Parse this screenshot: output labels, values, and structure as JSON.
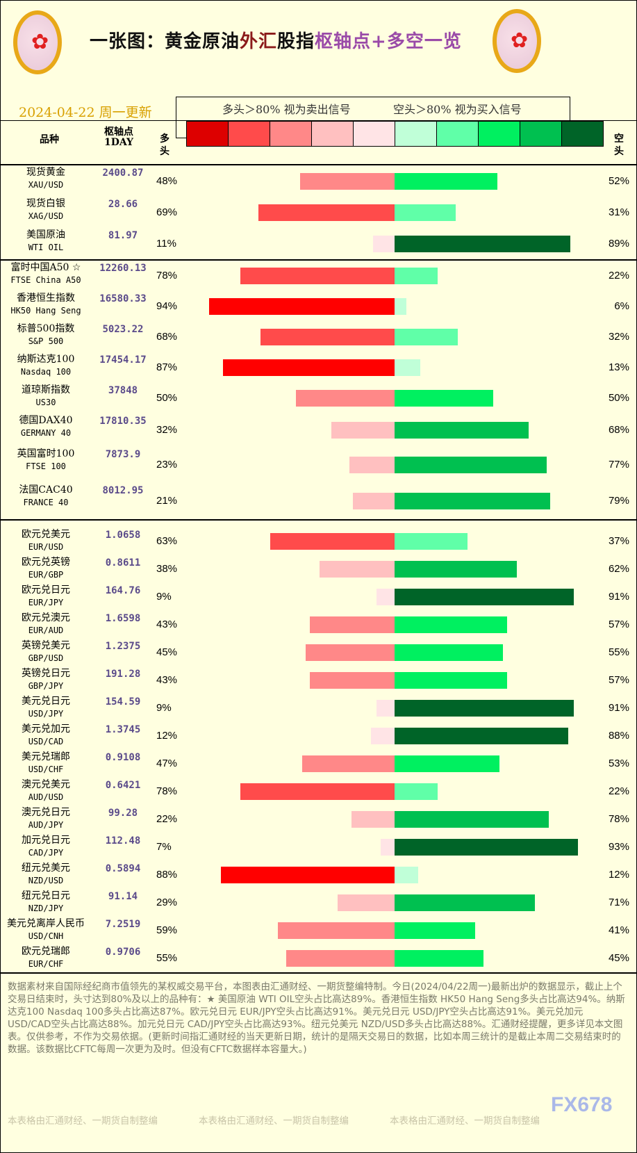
{
  "header": {
    "title_parts": [
      "一张图：黄金原油",
      "外汇",
      "股指",
      "枢轴点+多空一览"
    ],
    "date": "2024-04-22 周一更新"
  },
  "legend": {
    "long_label": "多头＞80% 视为卖出信号",
    "short_label": "空头＞80% 视为买入信号",
    "swatches": [
      "#dd0000",
      "#ff4b4b",
      "#ff8888",
      "#ffc0c0",
      "#ffe4e6",
      "#c0ffd8",
      "#60ffa8",
      "#00f060",
      "#00c050",
      "#006428"
    ]
  },
  "columns": {
    "name": "品种",
    "pivot": "枢轴点",
    "pivot_sub": "1DAY",
    "long": "多头",
    "short": "空头"
  },
  "sections": [
    [
      {
        "cn": "现货黄金",
        "en": "XAU/USD",
        "pivot": "2400.87",
        "long": 48,
        "short": 52
      },
      {
        "cn": "现货白银",
        "en": "XAG/USD",
        "pivot": "28.66",
        "long": 69,
        "short": 31
      },
      {
        "cn": "美国原油",
        "en": "WTI OIL",
        "pivot": "81.97",
        "long": 11,
        "short": 89
      }
    ],
    [
      {
        "cn": "富时中国A50 ☆",
        "en": "FTSE China A50",
        "pivot": "12260.13",
        "long": 78,
        "short": 22
      },
      {
        "cn": "香港恒生指数",
        "en": "HK50 Hang Seng",
        "pivot": "16580.33",
        "long": 94,
        "short": 6
      },
      {
        "cn": "标普500指数",
        "en": "S&P 500",
        "pivot": "5023.22",
        "long": 68,
        "short": 32
      },
      {
        "cn": "纳斯达克100",
        "en": "Nasdaq 100",
        "pivot": "17454.17",
        "long": 87,
        "short": 13
      },
      {
        "cn": "道琼斯指数",
        "en": "US30",
        "pivot": "37848",
        "long": 50,
        "short": 50
      },
      {
        "cn": "德国DAX40",
        "en": "GERMANY 40",
        "pivot": "17810.35",
        "long": 32,
        "short": 68
      },
      {
        "cn": "英国富时100",
        "en": "FTSE 100",
        "pivot": "7873.9",
        "long": 23,
        "short": 77
      },
      {
        "cn": "法国CAC40",
        "en": "FRANCE 40",
        "pivot": "8012.95",
        "long": 21,
        "short": 79
      }
    ],
    [
      {
        "cn": "欧元兑美元",
        "en": "EUR/USD",
        "pivot": "1.0658",
        "long": 63,
        "short": 37
      },
      {
        "cn": "欧元兑英镑",
        "en": "EUR/GBP",
        "pivot": "0.8611",
        "long": 38,
        "short": 62
      },
      {
        "cn": "欧元兑日元",
        "en": "EUR/JPY",
        "pivot": "164.76",
        "long": 9,
        "short": 91
      },
      {
        "cn": "欧元兑澳元",
        "en": "EUR/AUD",
        "pivot": "1.6598",
        "long": 43,
        "short": 57
      },
      {
        "cn": "英镑兑美元",
        "en": "GBP/USD",
        "pivot": "1.2375",
        "long": 45,
        "short": 55
      },
      {
        "cn": "英镑兑日元",
        "en": "GBP/JPY",
        "pivot": "191.28",
        "long": 43,
        "short": 57
      },
      {
        "cn": "美元兑日元",
        "en": "USD/JPY",
        "pivot": "154.59",
        "long": 9,
        "short": 91
      },
      {
        "cn": "美元兑加元",
        "en": "USD/CAD",
        "pivot": "1.3745",
        "long": 12,
        "short": 88
      },
      {
        "cn": "美元兑瑞郎",
        "en": "USD/CHF",
        "pivot": "0.9108",
        "long": 47,
        "short": 53
      },
      {
        "cn": "澳元兑美元",
        "en": "AUD/USD",
        "pivot": "0.6421",
        "long": 78,
        "short": 22
      },
      {
        "cn": "澳元兑日元",
        "en": "AUD/JPY",
        "pivot": "99.28",
        "long": 22,
        "short": 78
      },
      {
        "cn": "加元兑日元",
        "en": "CAD/JPY",
        "pivot": "112.48",
        "long": 7,
        "short": 93
      },
      {
        "cn": "纽元兑美元",
        "en": "NZD/USD",
        "pivot": "0.5894",
        "long": 88,
        "short": 12
      },
      {
        "cn": "纽元兑日元",
        "en": "NZD/JPY",
        "pivot": "91.14",
        "long": 29,
        "short": 71
      },
      {
        "cn": "美元兑离岸人民币",
        "en": "USD/CNH",
        "pivot": "7.2519",
        "long": 59,
        "short": 41
      },
      {
        "cn": "欧元兑瑞郎",
        "en": "EUR/CHF",
        "pivot": "0.9706",
        "long": 55,
        "short": 45
      }
    ]
  ],
  "bar_colors": {
    "long": [
      "#ffe4e6",
      "#ffc0c0",
      "#ff8888",
      "#ff4b4b",
      "#ff0000"
    ],
    "short": [
      "#c0ffd8",
      "#60ffa8",
      "#00f060",
      "#00c050",
      "#006428"
    ]
  },
  "footer": {
    "text": "数据素材来自国际经纪商市值领先的某权威交易平台，本图表由汇通财经、一期货整编特制。今日(2024/04/22周一)最新出炉的数据显示，截止上个交易日结束时，头寸达到80%及以上的品种有：★ 美国原油 WTI OIL空头占比高达89%。香港恒生指数 HK50 Hang Seng多头占比高达94%。纳斯达克100 Nasdaq 100多头占比高达87%。欧元兑日元 EUR/JPY空头占比高达91%。美元兑日元 USD/JPY空头占比高达91%。美元兑加元 USD/CAD空头占比高达88%。加元兑日元 CAD/JPY空头占比高达93%。纽元兑美元 NZD/USD多头占比高达88%。汇通财经提醒，更多详见本文图表。仅供参考，不作为交易依据。(更新时间指汇通财经的当天更新日期，统计的是隔天交易日的数据，比如本周三统计的是截止本周二交易结束时的数据。该数据比CFTC每周一次更为及时。但没有CFTC数据样本容量大。)",
    "watermark": "本表格由汇通财经、一期货自制整编",
    "brand": "FX678"
  }
}
